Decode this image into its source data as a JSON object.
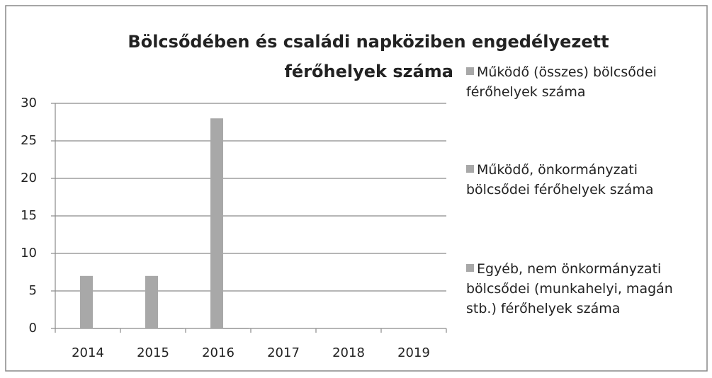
{
  "chart_data": {
    "type": "bar",
    "title": [
      "Bölcsődében és családi napköziben engedélyezett",
      "férőhelyek száma"
    ],
    "categories": [
      "2014",
      "2015",
      "2016",
      "2017",
      "2018",
      "2019"
    ],
    "series": [
      {
        "name": "Működő (összes) bölcsődei férőhelyek száma",
        "color": "#a8a8a8",
        "values": [
          7,
          7,
          28,
          null,
          null,
          null
        ]
      },
      {
        "name": "Működő, önkormányzati bölcsődei férőhelyek száma",
        "color": "#a8a8a8",
        "values": [
          0,
          0,
          0,
          null,
          null,
          null
        ]
      },
      {
        "name": "Egyéb, nem önkormányzati bölcsődei (munkahelyi, magán stb.) férőhelyek száma",
        "color": "#a8a8a8",
        "values": [
          0,
          0,
          0,
          null,
          null,
          null
        ]
      }
    ],
    "ylim": [
      0,
      30
    ],
    "yticks": [
      0,
      5,
      10,
      15,
      20,
      25,
      30
    ],
    "grid": true,
    "legend": "right"
  }
}
